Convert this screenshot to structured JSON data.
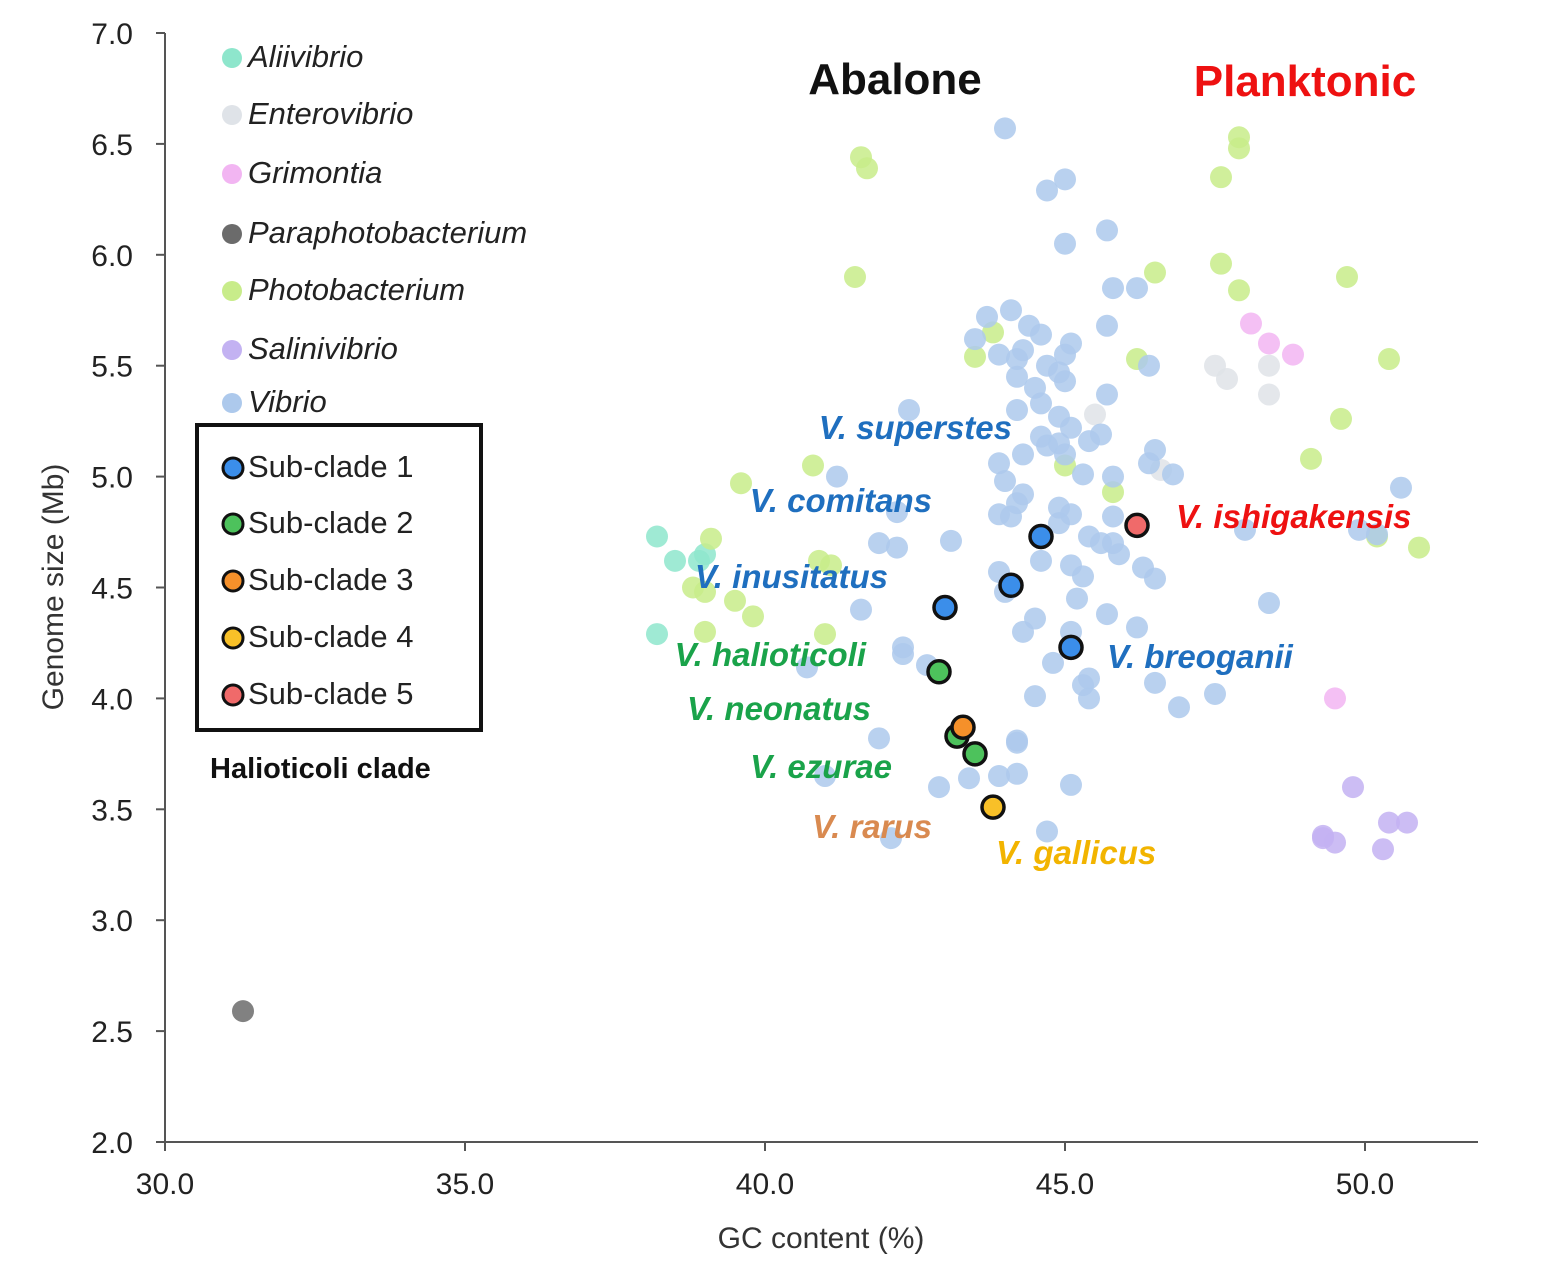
{
  "chart_data": {
    "type": "scatter",
    "xlabel": "GC content (%)",
    "ylabel": "Genome size (Mb)",
    "xlim": [
      30,
      52
    ],
    "ylim": [
      2.0,
      7.0
    ],
    "xticks": [
      "30.0",
      "35.0",
      "40.0",
      "45.0",
      "50.0"
    ],
    "xtick_values": [
      30,
      35,
      40,
      45,
      50
    ],
    "yticks": [
      "2.0",
      "2.5",
      "3.0",
      "3.5",
      "4.0",
      "4.5",
      "5.0",
      "5.5",
      "6.0",
      "6.5",
      "7.0"
    ],
    "ytick_values": [
      2.0,
      2.5,
      3.0,
      3.5,
      4.0,
      4.5,
      5.0,
      5.5,
      6.0,
      6.5,
      7.0
    ],
    "grid": false,
    "legend_placement": "top-left",
    "series": [
      {
        "name": "Aliivibrio",
        "color": "#8ee6cc",
        "points": [
          [
            38.2,
            4.73
          ],
          [
            38.5,
            4.62
          ],
          [
            39.0,
            4.65
          ],
          [
            38.9,
            4.62
          ],
          [
            38.2,
            4.29
          ]
        ]
      },
      {
        "name": "Enterovibrio",
        "color": "#dfe3e8",
        "points": [
          [
            45.5,
            5.28
          ],
          [
            47.5,
            5.5
          ],
          [
            47.7,
            5.44
          ],
          [
            48.4,
            5.5
          ],
          [
            48.4,
            5.37
          ],
          [
            46.6,
            5.03
          ]
        ]
      },
      {
        "name": "Grimontia",
        "color": "#f2b5f2",
        "points": [
          [
            48.1,
            5.69
          ],
          [
            48.4,
            5.6
          ],
          [
            48.8,
            5.55
          ],
          [
            49.5,
            4.0
          ]
        ]
      },
      {
        "name": "Paraphotobacterium",
        "color": "#6b6b6b",
        "points": [
          [
            31.3,
            2.59
          ]
        ]
      },
      {
        "name": "Photobacterium",
        "color": "#c8ec8a",
        "points": [
          [
            41.6,
            6.44
          ],
          [
            41.7,
            6.39
          ],
          [
            47.9,
            6.53
          ],
          [
            47.9,
            6.48
          ],
          [
            47.6,
            6.35
          ],
          [
            41.5,
            5.9
          ],
          [
            46.5,
            5.92
          ],
          [
            47.6,
            5.96
          ],
          [
            47.9,
            5.84
          ],
          [
            49.7,
            5.9
          ],
          [
            43.8,
            5.65
          ],
          [
            43.5,
            5.54
          ],
          [
            46.2,
            5.53
          ],
          [
            50.4,
            5.53
          ],
          [
            49.6,
            5.26
          ],
          [
            40.8,
            5.05
          ],
          [
            45.0,
            5.05
          ],
          [
            49.1,
            5.08
          ],
          [
            45.8,
            4.93
          ],
          [
            39.6,
            4.97
          ],
          [
            39.1,
            4.72
          ],
          [
            40.9,
            4.62
          ],
          [
            41.1,
            4.6
          ],
          [
            39.0,
            4.48
          ],
          [
            38.8,
            4.5
          ],
          [
            39.5,
            4.44
          ],
          [
            39.8,
            4.37
          ],
          [
            39.0,
            4.3
          ],
          [
            41.0,
            4.29
          ],
          [
            50.2,
            4.73
          ],
          [
            50.9,
            4.68
          ]
        ]
      },
      {
        "name": "Salinivibrio",
        "color": "#c3b2f2",
        "points": [
          [
            49.8,
            3.6
          ],
          [
            49.3,
            3.38
          ],
          [
            49.3,
            3.37
          ],
          [
            49.5,
            3.35
          ],
          [
            50.4,
            3.44
          ],
          [
            50.7,
            3.44
          ],
          [
            50.3,
            3.32
          ]
        ]
      },
      {
        "name": "Vibrio",
        "color": "#adc9ec",
        "points": [
          [
            44.0,
            6.57
          ],
          [
            44.7,
            6.29
          ],
          [
            45.0,
            6.34
          ],
          [
            45.0,
            6.05
          ],
          [
            45.7,
            6.11
          ],
          [
            45.8,
            5.85
          ],
          [
            46.2,
            5.85
          ],
          [
            45.7,
            5.68
          ],
          [
            43.5,
            5.62
          ],
          [
            43.7,
            5.72
          ],
          [
            44.1,
            5.75
          ],
          [
            44.4,
            5.68
          ],
          [
            44.6,
            5.64
          ],
          [
            44.2,
            5.53
          ],
          [
            43.9,
            5.55
          ],
          [
            44.3,
            5.57
          ],
          [
            44.7,
            5.5
          ],
          [
            45.0,
            5.55
          ],
          [
            45.1,
            5.6
          ],
          [
            44.9,
            5.47
          ],
          [
            44.5,
            5.4
          ],
          [
            44.2,
            5.45
          ],
          [
            45.0,
            5.43
          ],
          [
            45.7,
            5.37
          ],
          [
            46.4,
            5.5
          ],
          [
            42.4,
            5.3
          ],
          [
            44.2,
            5.3
          ],
          [
            44.6,
            5.33
          ],
          [
            44.9,
            5.27
          ],
          [
            44.6,
            5.18
          ],
          [
            44.9,
            5.15
          ],
          [
            45.1,
            5.22
          ],
          [
            45.4,
            5.16
          ],
          [
            45.6,
            5.19
          ],
          [
            44.7,
            5.14
          ],
          [
            45.0,
            5.1
          ],
          [
            44.3,
            5.1
          ],
          [
            43.9,
            5.06
          ],
          [
            46.5,
            5.12
          ],
          [
            46.4,
            5.06
          ],
          [
            46.8,
            5.01
          ],
          [
            45.3,
            5.01
          ],
          [
            45.8,
            5.0
          ],
          [
            44.0,
            4.98
          ],
          [
            44.3,
            4.92
          ],
          [
            44.2,
            4.88
          ],
          [
            43.9,
            4.83
          ],
          [
            44.1,
            4.82
          ],
          [
            44.9,
            4.86
          ],
          [
            44.9,
            4.79
          ],
          [
            45.1,
            4.83
          ],
          [
            45.4,
            4.73
          ],
          [
            45.6,
            4.7
          ],
          [
            45.8,
            4.7
          ],
          [
            45.9,
            4.65
          ],
          [
            45.8,
            4.82
          ],
          [
            41.2,
            5.0
          ],
          [
            42.2,
            4.84
          ],
          [
            41.9,
            4.7
          ],
          [
            42.2,
            4.68
          ],
          [
            43.1,
            4.71
          ],
          [
            43.9,
            4.57
          ],
          [
            44.1,
            4.5
          ],
          [
            44.0,
            4.48
          ],
          [
            44.6,
            4.62
          ],
          [
            45.1,
            4.6
          ],
          [
            45.2,
            4.45
          ],
          [
            45.3,
            4.55
          ],
          [
            44.5,
            4.36
          ],
          [
            44.3,
            4.3
          ],
          [
            45.1,
            4.3
          ],
          [
            45.7,
            4.38
          ],
          [
            46.2,
            4.32
          ],
          [
            46.3,
            4.59
          ],
          [
            46.5,
            4.54
          ],
          [
            41.6,
            4.4
          ],
          [
            42.3,
            4.23
          ],
          [
            42.3,
            4.2
          ],
          [
            42.7,
            4.15
          ],
          [
            44.8,
            4.16
          ],
          [
            45.3,
            4.06
          ],
          [
            45.4,
            4.09
          ],
          [
            45.4,
            4.0
          ],
          [
            44.5,
            4.01
          ],
          [
            46.5,
            4.07
          ],
          [
            46.9,
            3.96
          ],
          [
            47.5,
            4.02
          ],
          [
            48.0,
            4.76
          ],
          [
            48.4,
            4.43
          ],
          [
            49.9,
            4.76
          ],
          [
            50.2,
            4.74
          ],
          [
            50.6,
            4.95
          ],
          [
            41.9,
            3.82
          ],
          [
            42.9,
            3.6
          ],
          [
            43.4,
            3.64
          ],
          [
            43.9,
            3.65
          ],
          [
            44.2,
            3.66
          ],
          [
            44.2,
            3.8
          ],
          [
            44.2,
            3.81
          ],
          [
            45.1,
            3.61
          ],
          [
            44.7,
            3.4
          ],
          [
            42.1,
            3.37
          ],
          [
            41.0,
            3.65
          ],
          [
            40.7,
            4.14
          ]
        ]
      }
    ],
    "highlighted": [
      {
        "name": "Sub-clade 1",
        "color": "#3b8eea",
        "points": [
          [
            44.6,
            4.73
          ],
          [
            44.1,
            4.51
          ],
          [
            43.0,
            4.41
          ],
          [
            45.1,
            4.23
          ]
        ]
      },
      {
        "name": "Sub-clade 2",
        "color": "#4dc25c",
        "points": [
          [
            42.9,
            4.12
          ],
          [
            43.2,
            3.83
          ],
          [
            43.5,
            3.75
          ]
        ]
      },
      {
        "name": "Sub-clade 3",
        "color": "#f5902a",
        "points": [
          [
            43.3,
            3.87
          ]
        ]
      },
      {
        "name": "Sub-clade 4",
        "color": "#f8c028",
        "points": [
          [
            43.8,
            3.51
          ]
        ]
      },
      {
        "name": "Sub-clade 5",
        "color": "#f06a6a",
        "points": [
          [
            46.2,
            4.78
          ]
        ]
      }
    ],
    "legend_title": "Halioticoli clade",
    "region_labels": [
      {
        "text": "Abalone",
        "color": "#111111"
      },
      {
        "text": "Planktonic",
        "color": "#ee1111"
      }
    ],
    "annotations": [
      {
        "text": "V. superstes",
        "color": "#1f6fbf"
      },
      {
        "text": "V. comitans",
        "color": "#1f6fbf"
      },
      {
        "text": "V. inusitatus",
        "color": "#1f6fbf"
      },
      {
        "text": "V. breoganii",
        "color": "#1f6fbf"
      },
      {
        "text": "V. ishigakensis",
        "color": "#ee1111"
      },
      {
        "text": "V. halioticoli",
        "color": "#1aa34a"
      },
      {
        "text": "V. neonatus",
        "color": "#1aa34a"
      },
      {
        "text": "V. ezurae",
        "color": "#1aa34a"
      },
      {
        "text": "V. rarus",
        "color": "#d98a50"
      },
      {
        "text": "V. gallicus",
        "color": "#f2b400"
      }
    ]
  }
}
